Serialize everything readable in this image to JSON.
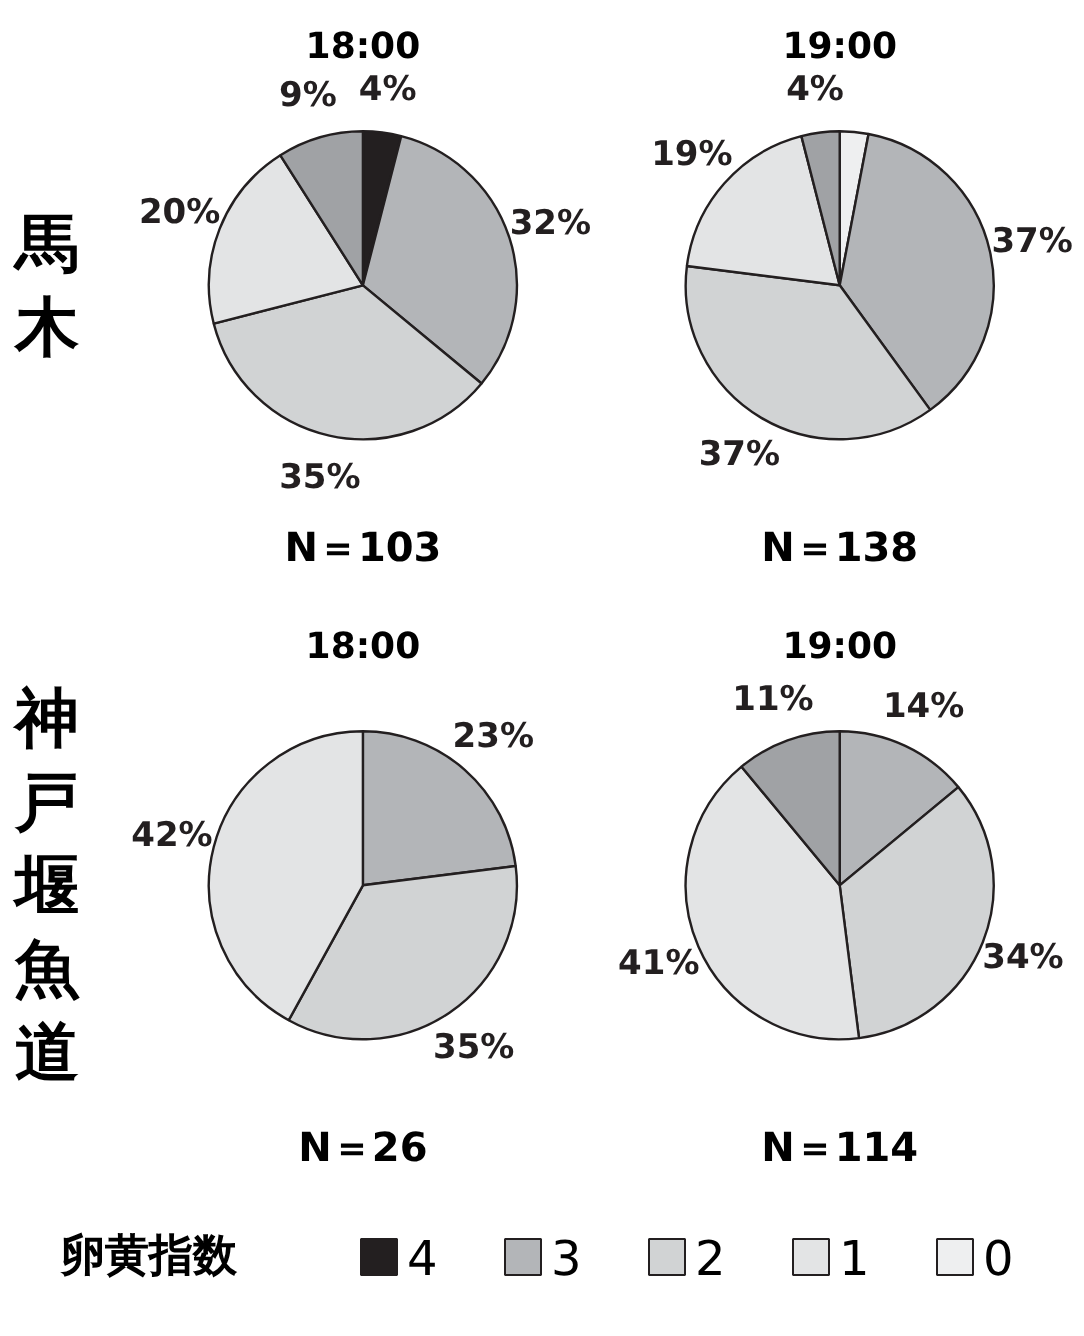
{
  "chart_data": [
    {
      "type": "pie",
      "title": "18:00",
      "ylabel": "馬木",
      "categories": [
        "4",
        "3",
        "2",
        "1",
        "0",
        null
      ],
      "values": [
        4,
        32,
        35,
        20,
        0,
        9
      ],
      "colors": [
        "#231f20",
        "#b3b5b8",
        "#d1d3d4",
        "#e3e4e5",
        "#eeeff0",
        "#a0a2a5"
      ],
      "value_labels": [
        "4%",
        "32%",
        "35%",
        "20%",
        null,
        "9%"
      ],
      "annotations": [
        "N＝103"
      ],
      "legend": "bottom",
      "legend_title": "卵黄指数"
    },
    {
      "type": "pie",
      "title": "19:00",
      "values": [
        3,
        37,
        37,
        19,
        4
      ],
      "colors": [
        "#eeeff0",
        "#b3b5b8",
        "#d1d3d4",
        "#e3e4e5",
        "#a0a2a5"
      ],
      "value_labels": [
        null,
        "37%",
        "37%",
        "19%",
        "4%"
      ],
      "annotations": [
        "N＝138"
      ]
    },
    {
      "type": "pie",
      "title": "18:00",
      "ylabel": "神戸堰魚道",
      "values": [
        23,
        35,
        42
      ],
      "colors": [
        "#b3b5b8",
        "#d1d3d4",
        "#e3e4e5"
      ],
      "value_labels": [
        "23%",
        "35%",
        "42%"
      ],
      "annotations": [
        "N＝26"
      ]
    },
    {
      "type": "pie",
      "title": "19:00",
      "values": [
        14,
        34,
        41,
        11
      ],
      "colors": [
        "#b3b5b8",
        "#d1d3d4",
        "#e3e4e5",
        "#a0a2a5"
      ],
      "value_labels": [
        "14%",
        "34%",
        "41%",
        "11%"
      ],
      "annotations": [
        "N＝114"
      ]
    }
  ]
}
